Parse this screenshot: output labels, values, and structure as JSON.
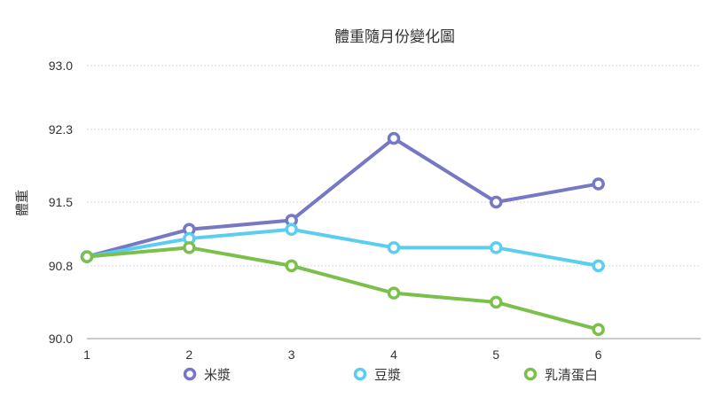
{
  "chart_data": {
    "type": "line",
    "title": "體重隨月份變化圖",
    "xlabel": "",
    "ylabel": "體重",
    "x": [
      1,
      2,
      3,
      4,
      5,
      6
    ],
    "x_ticks": [
      "1",
      "2",
      "3",
      "4",
      "5",
      "6"
    ],
    "xlim": [
      1,
      7
    ],
    "ylim": [
      90.0,
      93.0
    ],
    "y_ticks": [
      "90.0",
      "90.8",
      "91.5",
      "92.3",
      "93.0"
    ],
    "grid": true,
    "legend_position": "bottom",
    "series": [
      {
        "name": "米漿",
        "color": "#7678c4",
        "values": [
          90.9,
          91.2,
          91.3,
          92.2,
          91.5,
          91.7
        ]
      },
      {
        "name": "豆漿",
        "color": "#5acdf1",
        "values": [
          90.9,
          91.1,
          91.2,
          91.0,
          91.0,
          90.8
        ]
      },
      {
        "name": "乳清蛋白",
        "color": "#7bc04a",
        "values": [
          90.9,
          91.0,
          90.8,
          90.5,
          90.4,
          90.1
        ]
      }
    ]
  }
}
